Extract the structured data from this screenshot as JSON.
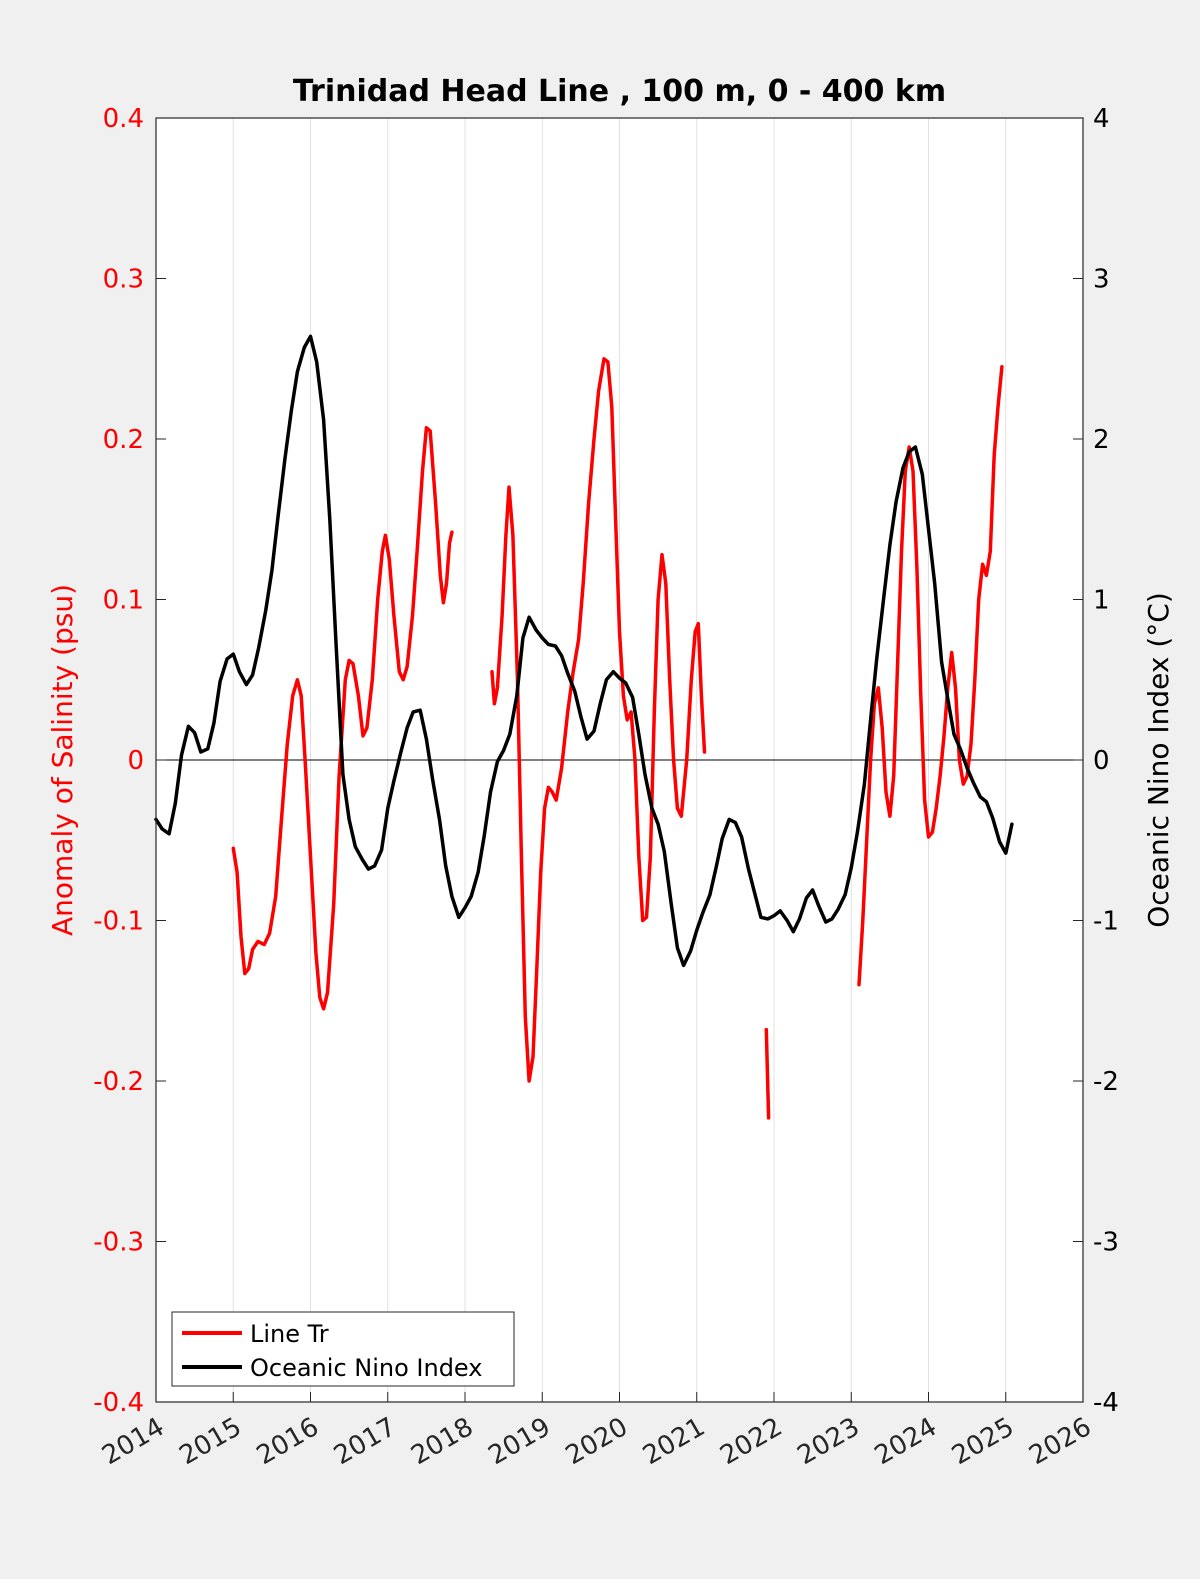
{
  "chart_data": {
    "type": "line",
    "title": "Trinidad Head Line , 100 m, 0 - 400 km",
    "xlabel": "",
    "ylabel_left": "Anomaly of Salinity (psu)",
    "ylabel_right": "Oceanic Nino Index (°C)",
    "xlim": [
      2014,
      2026
    ],
    "ylim_left": [
      -0.4,
      0.4
    ],
    "ylim_right": [
      -4,
      4
    ],
    "x_ticks": [
      "2014",
      "2015",
      "2016",
      "2017",
      "2018",
      "2019",
      "2020",
      "2021",
      "2022",
      "2023",
      "2024",
      "2025",
      "2026"
    ],
    "y_ticks_left": [
      "0.4",
      "0.3",
      "0.2",
      "0.1",
      "0",
      "-0.1",
      "-0.2",
      "-0.3",
      "-0.4"
    ],
    "y_ticks_right": [
      "4",
      "3",
      "2",
      "1",
      "0",
      "-1",
      "-2",
      "-3",
      "-4"
    ],
    "grid": "vertical",
    "zero_line": true,
    "legend_position": "bottom-left",
    "colors": {
      "salinity": "#ff0000",
      "oni": "#000000",
      "left_axis": "#ff0000",
      "right_axis": "#000000"
    },
    "series": [
      {
        "name": "Line Tr",
        "axis": "left",
        "segments": [
          [
            [
              2015.0,
              -0.055
            ],
            [
              2015.05,
              -0.07
            ],
            [
              2015.1,
              -0.11
            ],
            [
              2015.15,
              -0.133
            ],
            [
              2015.2,
              -0.13
            ],
            [
              2015.25,
              -0.118
            ],
            [
              2015.32,
              -0.113
            ],
            [
              2015.4,
              -0.115
            ],
            [
              2015.47,
              -0.108
            ],
            [
              2015.55,
              -0.085
            ],
            [
              2015.62,
              -0.04
            ],
            [
              2015.7,
              0.01
            ],
            [
              2015.77,
              0.04
            ],
            [
              2015.83,
              0.05
            ],
            [
              2015.88,
              0.04
            ],
            [
              2015.93,
              0.0
            ],
            [
              2016.0,
              -0.06
            ],
            [
              2016.07,
              -0.12
            ],
            [
              2016.12,
              -0.148
            ],
            [
              2016.17,
              -0.155
            ],
            [
              2016.22,
              -0.145
            ],
            [
              2016.3,
              -0.09
            ],
            [
              2016.37,
              -0.01
            ],
            [
              2016.45,
              0.05
            ],
            [
              2016.5,
              0.062
            ],
            [
              2016.55,
              0.06
            ],
            [
              2016.62,
              0.04
            ],
            [
              2016.68,
              0.015
            ],
            [
              2016.73,
              0.02
            ],
            [
              2016.8,
              0.05
            ],
            [
              2016.87,
              0.1
            ],
            [
              2016.93,
              0.13
            ],
            [
              2016.97,
              0.14
            ],
            [
              2017.02,
              0.125
            ],
            [
              2017.08,
              0.09
            ],
            [
              2017.15,
              0.055
            ],
            [
              2017.2,
              0.05
            ],
            [
              2017.25,
              0.058
            ],
            [
              2017.32,
              0.09
            ],
            [
              2017.38,
              0.13
            ],
            [
              2017.45,
              0.18
            ],
            [
              2017.5,
              0.207
            ],
            [
              2017.55,
              0.205
            ],
            [
              2017.62,
              0.16
            ],
            [
              2017.68,
              0.115
            ],
            [
              2017.72,
              0.098
            ],
            [
              2017.76,
              0.11
            ],
            [
              2017.8,
              0.135
            ],
            [
              2017.83,
              0.142
            ]
          ],
          [
            [
              2018.35,
              0.055
            ],
            [
              2018.38,
              0.035
            ],
            [
              2018.42,
              0.045
            ],
            [
              2018.48,
              0.09
            ],
            [
              2018.53,
              0.14
            ],
            [
              2018.57,
              0.17
            ],
            [
              2018.62,
              0.14
            ],
            [
              2018.68,
              0.05
            ],
            [
              2018.73,
              -0.06
            ],
            [
              2018.78,
              -0.16
            ],
            [
              2018.83,
              -0.2
            ],
            [
              2018.88,
              -0.185
            ],
            [
              2018.93,
              -0.13
            ],
            [
              2018.98,
              -0.07
            ],
            [
              2019.03,
              -0.03
            ],
            [
              2019.08,
              -0.017
            ],
            [
              2019.13,
              -0.02
            ],
            [
              2019.18,
              -0.025
            ],
            [
              2019.25,
              -0.005
            ],
            [
              2019.33,
              0.03
            ],
            [
              2019.4,
              0.055
            ],
            [
              2019.47,
              0.075
            ],
            [
              2019.53,
              0.11
            ],
            [
              2019.6,
              0.16
            ],
            [
              2019.67,
              0.2
            ],
            [
              2019.73,
              0.23
            ],
            [
              2019.8,
              0.25
            ],
            [
              2019.85,
              0.248
            ],
            [
              2019.9,
              0.22
            ],
            [
              2019.95,
              0.15
            ],
            [
              2020.0,
              0.08
            ],
            [
              2020.05,
              0.04
            ],
            [
              2020.1,
              0.025
            ],
            [
              2020.15,
              0.03
            ],
            [
              2020.2,
              0.0
            ],
            [
              2020.25,
              -0.06
            ],
            [
              2020.3,
              -0.1
            ],
            [
              2020.35,
              -0.098
            ],
            [
              2020.4,
              -0.06
            ],
            [
              2020.45,
              0.03
            ],
            [
              2020.5,
              0.1
            ],
            [
              2020.55,
              0.128
            ],
            [
              2020.6,
              0.11
            ],
            [
              2020.65,
              0.05
            ],
            [
              2020.7,
              0.0
            ],
            [
              2020.75,
              -0.03
            ],
            [
              2020.8,
              -0.035
            ],
            [
              2020.87,
              0.0
            ],
            [
              2020.93,
              0.05
            ],
            [
              2020.98,
              0.08
            ],
            [
              2021.02,
              0.085
            ],
            [
              2021.06,
              0.04
            ],
            [
              2021.1,
              0.005
            ]
          ],
          [
            [
              2021.9,
              -0.168
            ],
            [
              2021.93,
              -0.223
            ]
          ],
          [
            [
              2023.1,
              -0.14
            ],
            [
              2023.15,
              -0.1
            ],
            [
              2023.2,
              -0.05
            ],
            [
              2023.25,
              0.0
            ],
            [
              2023.3,
              0.035
            ],
            [
              2023.35,
              0.045
            ],
            [
              2023.4,
              0.02
            ],
            [
              2023.45,
              -0.02
            ],
            [
              2023.5,
              -0.035
            ],
            [
              2023.55,
              -0.01
            ],
            [
              2023.6,
              0.06
            ],
            [
              2023.65,
              0.13
            ],
            [
              2023.7,
              0.18
            ],
            [
              2023.75,
              0.195
            ],
            [
              2023.8,
              0.18
            ],
            [
              2023.85,
              0.12
            ],
            [
              2023.9,
              0.04
            ],
            [
              2023.95,
              -0.025
            ],
            [
              2024.0,
              -0.048
            ],
            [
              2024.05,
              -0.045
            ],
            [
              2024.1,
              -0.03
            ],
            [
              2024.15,
              -0.01
            ],
            [
              2024.2,
              0.015
            ],
            [
              2024.25,
              0.045
            ],
            [
              2024.3,
              0.067
            ],
            [
              2024.35,
              0.045
            ],
            [
              2024.4,
              0.0
            ],
            [
              2024.45,
              -0.015
            ],
            [
              2024.5,
              -0.01
            ],
            [
              2024.55,
              0.01
            ],
            [
              2024.6,
              0.05
            ],
            [
              2024.65,
              0.1
            ],
            [
              2024.7,
              0.122
            ],
            [
              2024.75,
              0.115
            ],
            [
              2024.8,
              0.13
            ],
            [
              2024.85,
              0.19
            ],
            [
              2024.9,
              0.22
            ],
            [
              2024.95,
              0.245
            ]
          ]
        ]
      },
      {
        "name": "Oceanic Nino Index",
        "axis": "right",
        "x": [
          2014.0,
          2014.08,
          2014.17,
          2014.25,
          2014.33,
          2014.42,
          2014.5,
          2014.58,
          2014.67,
          2014.75,
          2014.83,
          2014.92,
          2015.0,
          2015.08,
          2015.17,
          2015.25,
          2015.33,
          2015.42,
          2015.5,
          2015.58,
          2015.67,
          2015.75,
          2015.83,
          2015.92,
          2016.0,
          2016.08,
          2016.17,
          2016.25,
          2016.33,
          2016.42,
          2016.5,
          2016.58,
          2016.67,
          2016.75,
          2016.83,
          2016.92,
          2017.0,
          2017.08,
          2017.17,
          2017.25,
          2017.33,
          2017.42,
          2017.5,
          2017.58,
          2017.67,
          2017.75,
          2017.83,
          2017.92,
          2018.0,
          2018.08,
          2018.17,
          2018.25,
          2018.33,
          2018.42,
          2018.5,
          2018.58,
          2018.67,
          2018.75,
          2018.83,
          2018.92,
          2019.0,
          2019.08,
          2019.17,
          2019.25,
          2019.33,
          2019.42,
          2019.5,
          2019.58,
          2019.67,
          2019.75,
          2019.83,
          2019.92,
          2020.0,
          2020.08,
          2020.17,
          2020.25,
          2020.33,
          2020.42,
          2020.5,
          2020.58,
          2020.67,
          2020.75,
          2020.83,
          2020.92,
          2021.0,
          2021.08,
          2021.17,
          2021.25,
          2021.33,
          2021.42,
          2021.5,
          2021.58,
          2021.67,
          2021.75,
          2021.83,
          2021.92,
          2022.0,
          2022.08,
          2022.17,
          2022.25,
          2022.33,
          2022.42,
          2022.5,
          2022.58,
          2022.67,
          2022.75,
          2022.83,
          2022.92,
          2023.0,
          2023.08,
          2023.17,
          2023.25,
          2023.33,
          2023.42,
          2023.5,
          2023.58,
          2023.67,
          2023.75,
          2023.83,
          2023.92,
          2024.0,
          2024.08,
          2024.17,
          2024.25,
          2024.33,
          2024.42,
          2024.5,
          2024.58,
          2024.67,
          2024.75,
          2024.83,
          2024.92,
          2025.0,
          2025.08
        ],
        "values": [
          -0.37,
          -0.43,
          -0.46,
          -0.27,
          0.03,
          0.21,
          0.17,
          0.05,
          0.07,
          0.23,
          0.49,
          0.63,
          0.66,
          0.55,
          0.47,
          0.53,
          0.7,
          0.93,
          1.18,
          1.52,
          1.88,
          2.17,
          2.42,
          2.57,
          2.64,
          2.48,
          2.12,
          1.5,
          0.73,
          -0.09,
          -0.37,
          -0.54,
          -0.62,
          -0.68,
          -0.66,
          -0.56,
          -0.3,
          -0.13,
          0.05,
          0.2,
          0.3,
          0.31,
          0.13,
          -0.12,
          -0.37,
          -0.66,
          -0.85,
          -0.98,
          -0.92,
          -0.85,
          -0.7,
          -0.47,
          -0.2,
          -0.01,
          0.06,
          0.16,
          0.4,
          0.76,
          0.89,
          0.81,
          0.76,
          0.72,
          0.71,
          0.65,
          0.54,
          0.43,
          0.27,
          0.13,
          0.18,
          0.35,
          0.5,
          0.55,
          0.51,
          0.48,
          0.39,
          0.16,
          -0.09,
          -0.3,
          -0.4,
          -0.57,
          -0.9,
          -1.17,
          -1.28,
          -1.19,
          -1.06,
          -0.95,
          -0.84,
          -0.67,
          -0.49,
          -0.37,
          -0.39,
          -0.48,
          -0.68,
          -0.83,
          -0.98,
          -0.99,
          -0.97,
          -0.94,
          -1.0,
          -1.07,
          -0.99,
          -0.86,
          -0.81,
          -0.91,
          -1.01,
          -0.99,
          -0.93,
          -0.84,
          -0.67,
          -0.45,
          -0.15,
          0.25,
          0.63,
          1.01,
          1.34,
          1.61,
          1.82,
          1.92,
          1.95,
          1.78,
          1.44,
          1.1,
          0.61,
          0.38,
          0.16,
          0.06,
          -0.05,
          -0.14,
          -0.23,
          -0.26,
          -0.36,
          -0.51,
          -0.58,
          -0.4
        ]
      }
    ]
  }
}
